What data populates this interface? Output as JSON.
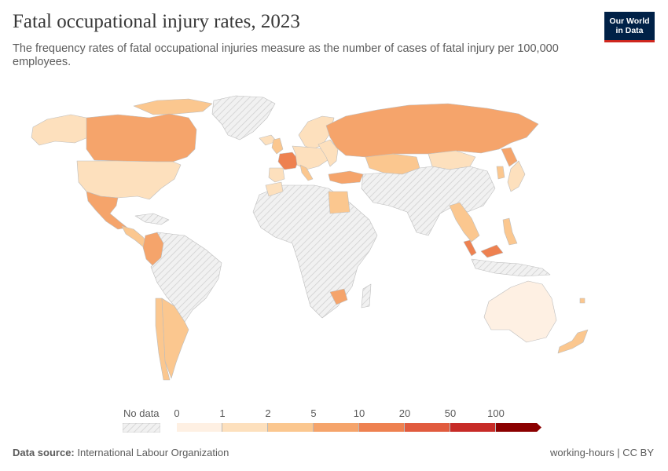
{
  "header": {
    "title": "Fatal occupational injury rates, 2023",
    "subtitle": "The frequency rates of fatal occupational injuries measure as the number of cases of fatal injury per 100,000 employees."
  },
  "logo": {
    "line1": "Our World",
    "line2": "in Data",
    "bg_color": "#002147",
    "accent_color": "#ce261e"
  },
  "legend": {
    "no_data_label": "No data",
    "ticks": [
      "0",
      "1",
      "2",
      "5",
      "10",
      "20",
      "50",
      "100"
    ],
    "colors": [
      "#fef0e3",
      "#fde0bd",
      "#fbc78f",
      "#f5a46b",
      "#ee8150",
      "#e15b3e",
      "#c72b27",
      "#8b0000"
    ]
  },
  "regions": [
    {
      "name": "Canada",
      "bin": 3
    },
    {
      "name": "Alaska",
      "bin": 1
    },
    {
      "name": "United States",
      "bin": 1
    },
    {
      "name": "Mexico",
      "bin": 3
    },
    {
      "name": "Central America",
      "bin": 2
    },
    {
      "name": "Colombia",
      "bin": 3
    },
    {
      "name": "Argentina",
      "bin": 2
    },
    {
      "name": "Chile",
      "bin": 2
    },
    {
      "name": "France",
      "bin": 4
    },
    {
      "name": "Spain",
      "bin": 1
    },
    {
      "name": "Scandinavia",
      "bin": 1
    },
    {
      "name": "Central Europe",
      "bin": 1
    },
    {
      "name": "Russia",
      "bin": 3
    },
    {
      "name": "Kazakhstan",
      "bin": 2
    },
    {
      "name": "Mongolia",
      "bin": 1
    },
    {
      "name": "Turkey",
      "bin": 3
    },
    {
      "name": "Egypt",
      "bin": 2
    },
    {
      "name": "Myanmar-Thailand",
      "bin": 2
    },
    {
      "name": "Malaysia",
      "bin": 4
    },
    {
      "name": "Philippines",
      "bin": 2
    },
    {
      "name": "Japan",
      "bin": 1
    },
    {
      "name": "Zimbabwe",
      "bin": 3
    },
    {
      "name": "Australia",
      "bin": 0
    },
    {
      "name": "New Zealand",
      "bin": 2
    }
  ],
  "footer": {
    "source_label": "Data source:",
    "source_value": "International Labour Organization",
    "right_text": "working-hours | CC BY"
  }
}
